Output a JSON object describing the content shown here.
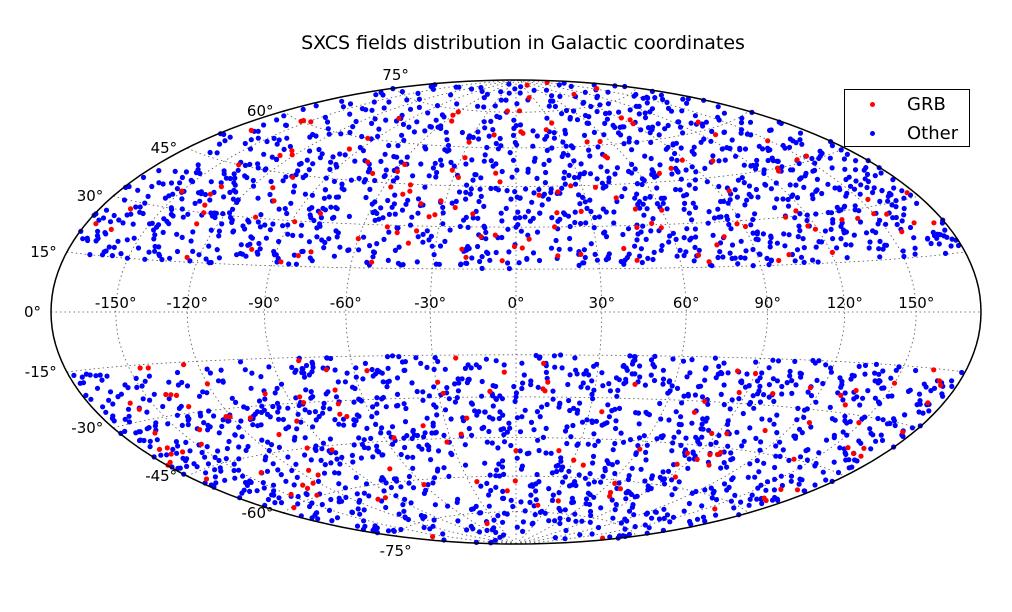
{
  "chart_data": {
    "type": "scatter",
    "projection": "Aitoff-Hammer (all-sky)",
    "title": "SXCS fields distribution in Galactic coordinates",
    "xlabel": "",
    "ylabel": "",
    "x_ticks": [
      "-150°",
      "-120°",
      "-90°",
      "-60°",
      "-30°",
      "0°",
      "30°",
      "60°",
      "90°",
      "120°",
      "150°"
    ],
    "y_ticks": [
      "75°",
      "60°",
      "45°",
      "30°",
      "15°",
      "0°",
      "-15°",
      "-30°",
      "-45°",
      "-60°",
      "-75°"
    ],
    "xlim": [
      -180,
      180
    ],
    "ylim": [
      -90,
      90
    ],
    "avoid_band_deg": 15,
    "grid": true,
    "legend_position": "top-right",
    "series": [
      {
        "name": "GRB",
        "color": "#ff0000",
        "approx_count": 260,
        "points": [
          [
            -165,
            28
          ],
          [
            -150,
            35
          ],
          [
            -140,
            45
          ],
          [
            -130,
            30
          ],
          [
            -125,
            52
          ],
          [
            -110,
            40
          ],
          [
            -100,
            20
          ],
          [
            -95,
            60
          ],
          [
            -80,
            33
          ],
          [
            -70,
            48
          ],
          [
            -60,
            25
          ],
          [
            -55,
            70
          ],
          [
            -40,
            38
          ],
          [
            -30,
            62
          ],
          [
            -20,
            22
          ],
          [
            -10,
            50
          ],
          [
            -5,
            18
          ],
          [
            5,
            66
          ],
          [
            15,
            30
          ],
          [
            25,
            45
          ],
          [
            30,
            70
          ],
          [
            40,
            22
          ],
          [
            50,
            55
          ],
          [
            60,
            35
          ],
          [
            70,
            48
          ],
          [
            80,
            25
          ],
          [
            95,
            40
          ],
          [
            110,
            30
          ],
          [
            130,
            45
          ],
          [
            150,
            28
          ],
          [
            165,
            24
          ],
          [
            -160,
            -25
          ],
          [
            -140,
            -35
          ],
          [
            -120,
            -22
          ],
          [
            -100,
            -45
          ],
          [
            -85,
            -30
          ],
          [
            -70,
            -55
          ],
          [
            -55,
            -20
          ],
          [
            -40,
            -40
          ],
          [
            -25,
            -62
          ],
          [
            -10,
            -28
          ],
          [
            0,
            -50
          ],
          [
            10,
            -18
          ],
          [
            20,
            -72
          ],
          [
            35,
            -35
          ],
          [
            45,
            -25
          ],
          [
            60,
            -48
          ],
          [
            75,
            -30
          ],
          [
            90,
            -20
          ],
          [
            110,
            -38
          ],
          [
            130,
            -25
          ],
          [
            150,
            -20
          ],
          [
            170,
            -18
          ]
        ]
      },
      {
        "name": "Other",
        "color": "#0000ff",
        "approx_count": 2600,
        "points": [
          [
            -170,
            20
          ],
          [
            -160,
            40
          ],
          [
            -150,
            25
          ],
          [
            -140,
            55
          ],
          [
            -130,
            18
          ],
          [
            -120,
            35
          ],
          [
            -110,
            65
          ],
          [
            -100,
            28
          ],
          [
            -90,
            45
          ],
          [
            -80,
            20
          ],
          [
            -70,
            72
          ],
          [
            -60,
            38
          ],
          [
            -50,
            25
          ],
          [
            -40,
            58
          ],
          [
            -30,
            20
          ],
          [
            -20,
            42
          ],
          [
            -10,
            75
          ],
          [
            0,
            30
          ],
          [
            10,
            48
          ],
          [
            20,
            22
          ],
          [
            30,
            62
          ],
          [
            40,
            35
          ],
          [
            50,
            18
          ],
          [
            60,
            52
          ],
          [
            70,
            28
          ],
          [
            80,
            66
          ],
          [
            90,
            36
          ],
          [
            100,
            22
          ],
          [
            110,
            50
          ],
          [
            120,
            30
          ],
          [
            130,
            20
          ],
          [
            140,
            42
          ],
          [
            150,
            26
          ],
          [
            160,
            35
          ],
          [
            170,
            20
          ],
          [
            -170,
            -20
          ],
          [
            -160,
            -38
          ],
          [
            -150,
            -25
          ],
          [
            -140,
            -50
          ],
          [
            -130,
            -18
          ],
          [
            -120,
            -32
          ],
          [
            -110,
            -62
          ],
          [
            -100,
            -28
          ],
          [
            -90,
            -44
          ],
          [
            -80,
            -20
          ],
          [
            -70,
            -70
          ],
          [
            -60,
            -36
          ],
          [
            -50,
            -24
          ],
          [
            -40,
            -56
          ],
          [
            -30,
            -20
          ],
          [
            -20,
            -44
          ],
          [
            -10,
            -76
          ],
          [
            0,
            -30
          ],
          [
            10,
            -46
          ],
          [
            20,
            -22
          ],
          [
            30,
            -60
          ],
          [
            40,
            -34
          ],
          [
            50,
            -18
          ],
          [
            60,
            -50
          ],
          [
            70,
            -28
          ],
          [
            80,
            -64
          ],
          [
            90,
            -36
          ],
          [
            100,
            -22
          ],
          [
            110,
            -48
          ],
          [
            120,
            -30
          ],
          [
            130,
            -20
          ],
          [
            140,
            -42
          ],
          [
            150,
            -26
          ],
          [
            160,
            -34
          ],
          [
            170,
            -20
          ]
        ]
      }
    ]
  }
}
